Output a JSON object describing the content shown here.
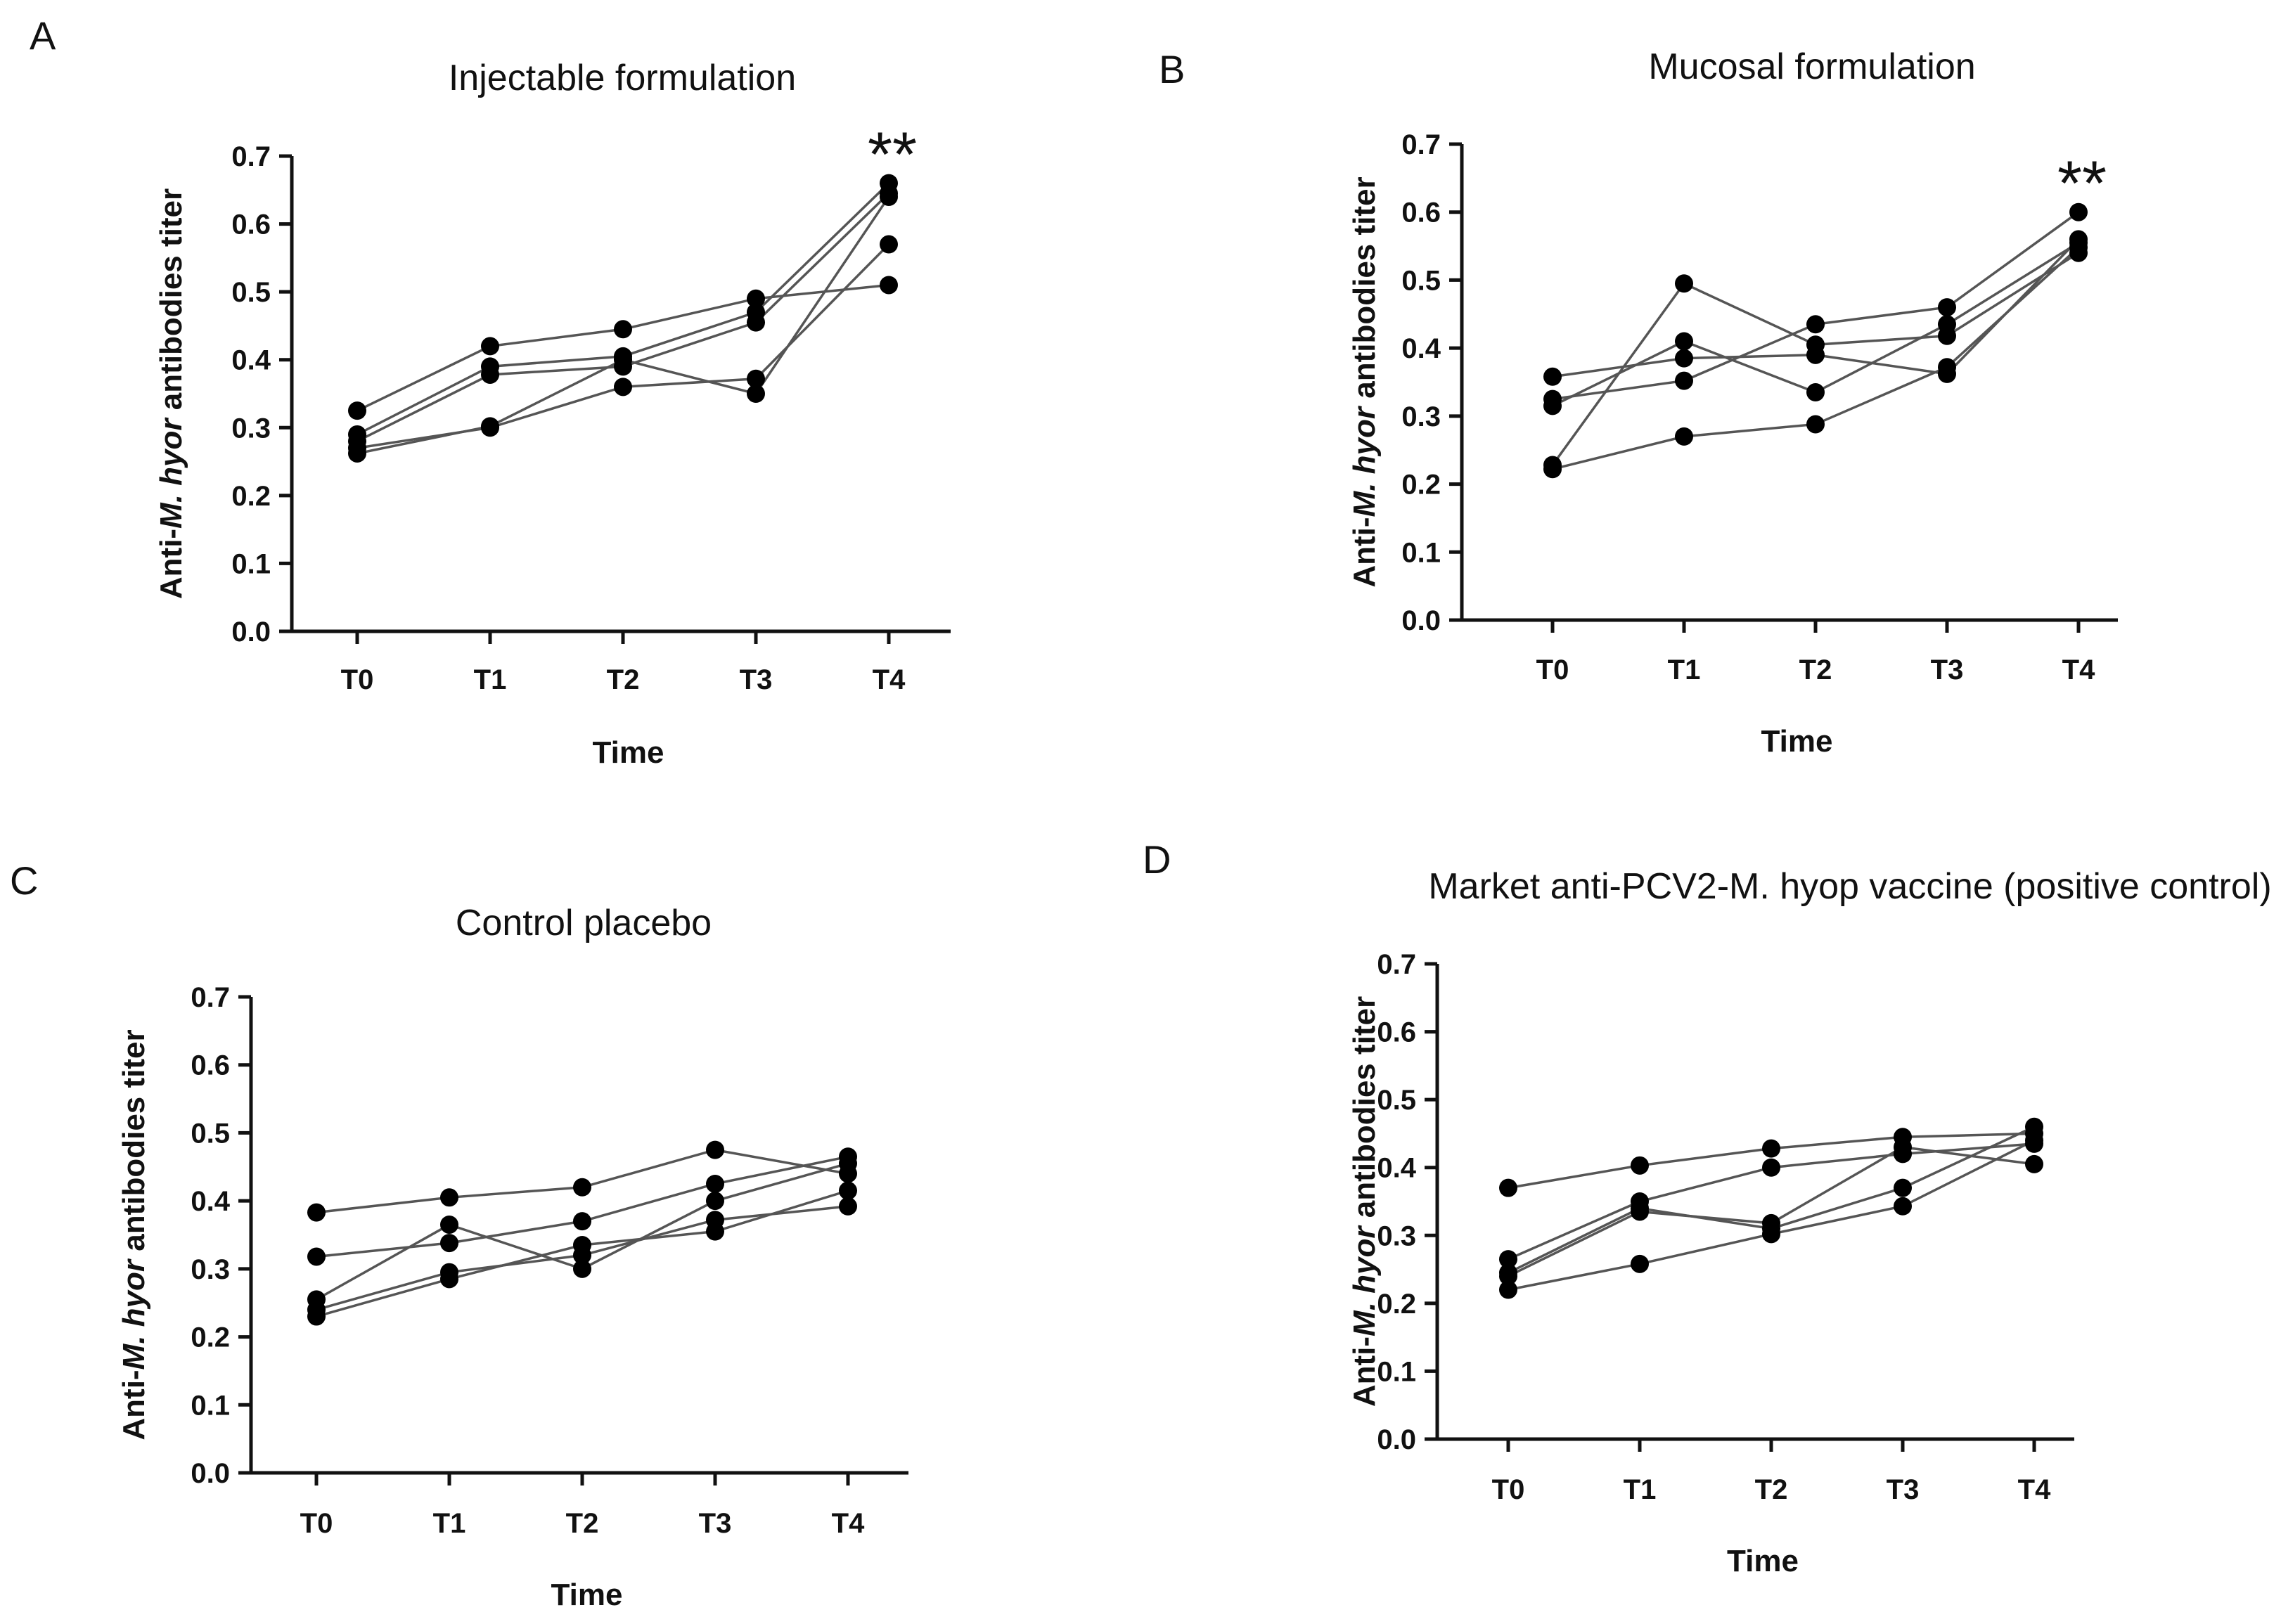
{
  "chart_data": [
    {
      "panel": "A",
      "type": "line",
      "title": "Injectable formulation",
      "xlabel": "Time",
      "ylabel_prefix": "Anti-",
      "ylabel_italic": "M. hyor",
      "ylabel_suffix": " antibodies titer",
      "categories": [
        "T0",
        "T1",
        "T2",
        "T3",
        "T4"
      ],
      "ylim": [
        0,
        0.7
      ],
      "yticks": [
        "0.0",
        "0.1",
        "0.2",
        "0.3",
        "0.4",
        "0.5",
        "0.6",
        "0.7"
      ],
      "annotation": "**",
      "annotation_category": "T4",
      "series": [
        {
          "values": [
            0.325,
            0.42,
            0.445,
            0.49,
            0.51
          ]
        },
        {
          "values": [
            0.29,
            0.39,
            0.405,
            0.47,
            0.66
          ]
        },
        {
          "values": [
            0.28,
            0.378,
            0.39,
            0.455,
            0.645
          ]
        },
        {
          "values": [
            0.27,
            0.3,
            0.36,
            0.372,
            0.57
          ]
        },
        {
          "values": [
            0.262,
            0.302,
            0.4,
            0.35,
            0.64
          ]
        }
      ]
    },
    {
      "panel": "B",
      "type": "line",
      "title": "Mucosal formulation",
      "xlabel": "Time",
      "ylabel_prefix": "Anti-",
      "ylabel_italic": "M. hyor",
      "ylabel_suffix": " antibodies titer",
      "categories": [
        "T0",
        "T1",
        "T2",
        "T3",
        "T4"
      ],
      "ylim": [
        0,
        0.7
      ],
      "yticks": [
        "0.0",
        "0.1",
        "0.2",
        "0.3",
        "0.4",
        "0.5",
        "0.6",
        "0.7"
      ],
      "annotation": "**",
      "annotation_category": "T4",
      "series": [
        {
          "values": [
            0.358,
            0.385,
            0.39,
            0.362,
            0.56
          ]
        },
        {
          "values": [
            0.325,
            0.352,
            0.435,
            0.46,
            0.6
          ]
        },
        {
          "values": [
            0.315,
            0.41,
            0.335,
            0.435,
            0.555
          ]
        },
        {
          "values": [
            0.228,
            0.495,
            0.405,
            0.418,
            0.54
          ]
        },
        {
          "values": [
            0.222,
            0.27,
            0.288,
            0.372,
            0.548
          ]
        }
      ]
    },
    {
      "panel": "C",
      "type": "line",
      "title": "Control placebo",
      "xlabel": "Time",
      "ylabel_prefix": "Anti-",
      "ylabel_italic": "M. hyor",
      "ylabel_suffix": " antibodies titer",
      "categories": [
        "T0",
        "T1",
        "T2",
        "T3",
        "T4"
      ],
      "ylim": [
        0,
        0.7
      ],
      "yticks": [
        "0.0",
        "0.1",
        "0.2",
        "0.3",
        "0.4",
        "0.5",
        "0.6",
        "0.7"
      ],
      "series": [
        {
          "values": [
            0.383,
            0.405,
            0.42,
            0.475,
            0.44
          ]
        },
        {
          "values": [
            0.318,
            0.338,
            0.37,
            0.425,
            0.465
          ]
        },
        {
          "values": [
            0.255,
            0.365,
            0.3,
            0.4,
            0.455
          ]
        },
        {
          "values": [
            0.24,
            0.295,
            0.32,
            0.372,
            0.392
          ]
        },
        {
          "values": [
            0.23,
            0.285,
            0.335,
            0.355,
            0.415
          ]
        }
      ]
    },
    {
      "panel": "D",
      "type": "line",
      "title": "Market anti-PCV2-M. hyop vaccine (positive control)",
      "xlabel": "Time",
      "ylabel_prefix": "Anti-",
      "ylabel_italic": "M. hyor",
      "ylabel_suffix": " antibodies titer",
      "categories": [
        "T0",
        "T1",
        "T2",
        "T3",
        "T4"
      ],
      "ylim": [
        0,
        0.7
      ],
      "yticks": [
        "0.0",
        "0.1",
        "0.2",
        "0.3",
        "0.4",
        "0.5",
        "0.6",
        "0.7"
      ],
      "series": [
        {
          "values": [
            0.37,
            0.403,
            0.428,
            0.445,
            0.45
          ]
        },
        {
          "values": [
            0.265,
            0.35,
            0.4,
            0.42,
            0.435
          ]
        },
        {
          "values": [
            0.245,
            0.34,
            0.31,
            0.37,
            0.46
          ]
        },
        {
          "values": [
            0.22,
            0.258,
            0.302,
            0.343,
            0.44
          ]
        },
        {
          "values": [
            0.24,
            0.335,
            0.318,
            0.43,
            0.405
          ]
        }
      ]
    }
  ]
}
